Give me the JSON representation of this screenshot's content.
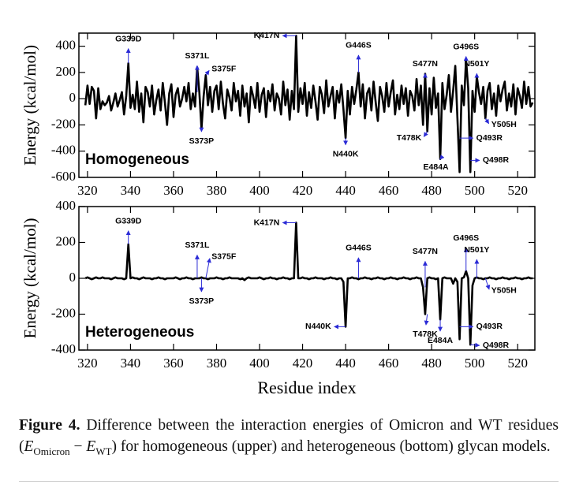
{
  "chart_data": [
    {
      "type": "line",
      "label": "Homogeneous",
      "ylabel": "Energy (kcal/mol)",
      "color": "#000000",
      "xlim": [
        316,
        528
      ],
      "ylim": [
        -600,
        500
      ],
      "xticks": [
        320,
        340,
        360,
        380,
        400,
        420,
        440,
        460,
        480,
        500,
        520
      ],
      "yticks": [
        -600,
        -400,
        -200,
        0,
        200,
        400
      ],
      "x": [
        319,
        320,
        321,
        322,
        323,
        324,
        325,
        326,
        327,
        328,
        329,
        330,
        331,
        332,
        333,
        334,
        335,
        336,
        337,
        338,
        339,
        340,
        341,
        342,
        343,
        344,
        345,
        346,
        347,
        348,
        349,
        350,
        351,
        352,
        353,
        354,
        355,
        356,
        357,
        358,
        359,
        360,
        361,
        362,
        363,
        364,
        365,
        366,
        367,
        368,
        369,
        370,
        371,
        372,
        373,
        374,
        375,
        376,
        377,
        378,
        379,
        380,
        381,
        382,
        383,
        384,
        385,
        386,
        387,
        388,
        389,
        390,
        391,
        392,
        393,
        394,
        395,
        396,
        397,
        398,
        399,
        400,
        401,
        402,
        403,
        404,
        405,
        406,
        407,
        408,
        409,
        410,
        411,
        412,
        413,
        414,
        415,
        416,
        417,
        418,
        419,
        420,
        421,
        422,
        423,
        424,
        425,
        426,
        427,
        428,
        429,
        430,
        431,
        432,
        433,
        434,
        435,
        436,
        437,
        438,
        439,
        440,
        441,
        442,
        443,
        444,
        445,
        446,
        447,
        448,
        449,
        450,
        451,
        452,
        453,
        454,
        455,
        456,
        457,
        458,
        459,
        460,
        461,
        462,
        463,
        464,
        465,
        466,
        467,
        468,
        469,
        470,
        471,
        472,
        473,
        474,
        475,
        476,
        477,
        478,
        479,
        480,
        481,
        482,
        483,
        484,
        485,
        486,
        487,
        488,
        489,
        490,
        491,
        492,
        493,
        494,
        495,
        496,
        497,
        498,
        499,
        500,
        501,
        502,
        503,
        504,
        505,
        506,
        507,
        508,
        509,
        510,
        511,
        512,
        513,
        514,
        515,
        516,
        517,
        518,
        519,
        520,
        521,
        522,
        523,
        524,
        525,
        526,
        527
      ],
      "values": [
        -50,
        100,
        -40,
        90,
        60,
        -150,
        80,
        -80,
        -20,
        -50,
        -30,
        20,
        -90,
        -30,
        40,
        -60,
        -10,
        50,
        -120,
        20,
        270,
        -70,
        30,
        -80,
        130,
        -100,
        40,
        -180,
        90,
        50,
        -60,
        100,
        -120,
        -10,
        70,
        -90,
        120,
        -30,
        -200,
        40,
        110,
        -140,
        30,
        80,
        -60,
        0,
        90,
        -20,
        120,
        -80,
        40,
        -60,
        240,
        50,
        -230,
        20,
        180,
        -50,
        90,
        -100,
        60,
        100,
        -80,
        130,
        -40,
        -150,
        70,
        10,
        -90,
        120,
        -20,
        60,
        -130,
        100,
        -60,
        40,
        -180,
        90,
        20,
        -70,
        120,
        -100,
        30,
        80,
        -140,
        60,
        -20,
        110,
        -90,
        40,
        0,
        -120,
        130,
        -50,
        70,
        -160,
        60,
        -80,
        480,
        -100,
        80,
        -40,
        120,
        -130,
        50,
        -70,
        100,
        -20,
        -160,
        90,
        30,
        -110,
        140,
        -60,
        20,
        90,
        -150,
        60,
        -30,
        110,
        -80,
        -300,
        60,
        -120,
        90,
        -40,
        70,
        200,
        -60,
        110,
        -150,
        40,
        80,
        -90,
        130,
        -30,
        -170,
        90,
        20,
        -100,
        120,
        -60,
        50,
        140,
        -120,
        30,
        -80,
        100,
        -40,
        80,
        -130,
        60,
        20,
        -90,
        150,
        -50,
        100,
        -200,
        190,
        -250,
        80,
        -120,
        160,
        -70,
        40,
        -460,
        120,
        -80,
        30,
        180,
        -100,
        60,
        250,
        -150,
        -560,
        100,
        -50,
        300,
        80,
        -560,
        60,
        -100,
        170,
        50,
        -40,
        90,
        -150,
        60,
        120,
        -80,
        40,
        -130,
        100,
        -20,
        70,
        130,
        -90,
        40,
        -60,
        110,
        -120,
        80,
        20,
        -70,
        130,
        -40,
        90,
        -60,
        -30
      ],
      "annotations": [
        {
          "text": "G339D",
          "x": 339,
          "y": 270,
          "tx": 339,
          "ty": 430,
          "ha": "center"
        },
        {
          "text": "S371L",
          "x": 371,
          "y": 50,
          "tx": 371,
          "ty": 300,
          "ha": "center"
        },
        {
          "text": "S375F",
          "x": 375,
          "y": 180,
          "tx": 377,
          "ty": 225,
          "ha": "left"
        },
        {
          "text": "S373P",
          "x": 373,
          "y": -230,
          "tx": 373,
          "ty": -300,
          "ha": "center"
        },
        {
          "text": "K417N",
          "x": 417,
          "y": 480,
          "tx": 410,
          "ty": 480,
          "ha": "right"
        },
        {
          "text": "N440K",
          "x": 440,
          "y": -300,
          "tx": 440,
          "ty": -400,
          "ha": "center"
        },
        {
          "text": "G446S",
          "x": 446,
          "y": 200,
          "tx": 446,
          "ty": 380,
          "ha": "center"
        },
        {
          "text": "S477N",
          "x": 477,
          "y": 190,
          "tx": 477,
          "ty": 240,
          "ha": "center"
        },
        {
          "text": "T478K",
          "x": 478,
          "y": -250,
          "tx": 476,
          "ty": -300,
          "ha": "right"
        },
        {
          "text": "E484A",
          "x": 484,
          "y": -460,
          "tx": 482,
          "ty": -500,
          "ha": "center"
        },
        {
          "text": "G496S",
          "x": 496,
          "y": 300,
          "tx": 496,
          "ty": 370,
          "ha": "center"
        },
        {
          "text": "N501Y",
          "x": 501,
          "y": 170,
          "tx": 501,
          "ty": 240,
          "ha": "center"
        },
        {
          "text": "Y505H",
          "x": 505,
          "y": -150,
          "tx": 507,
          "ty": -200,
          "ha": "left"
        },
        {
          "text": "Q493R",
          "x": 493,
          "y": -300,
          "tx": 500,
          "ty": -300,
          "ha": "left"
        },
        {
          "text": "Q498R",
          "x": 498,
          "y": -470,
          "tx": 503,
          "ty": -470,
          "ha": "left"
        }
      ]
    },
    {
      "type": "line",
      "label": "Heterogeneous",
      "ylabel": "Energy (kcal/mol)",
      "xlabel": "Residue index",
      "color": "#000000",
      "xlim": [
        316,
        528
      ],
      "ylim": [
        -400,
        400
      ],
      "xticks": [
        320,
        340,
        360,
        380,
        400,
        420,
        440,
        460,
        480,
        500,
        520
      ],
      "yticks": [
        -400,
        -200,
        0,
        200,
        400
      ],
      "x": [
        319,
        320,
        321,
        322,
        323,
        324,
        325,
        326,
        327,
        328,
        329,
        330,
        331,
        332,
        333,
        334,
        335,
        336,
        337,
        338,
        339,
        340,
        341,
        342,
        343,
        344,
        345,
        346,
        347,
        348,
        349,
        350,
        351,
        352,
        353,
        354,
        355,
        356,
        357,
        358,
        359,
        360,
        361,
        362,
        363,
        364,
        365,
        366,
        367,
        368,
        369,
        370,
        371,
        372,
        373,
        374,
        375,
        376,
        377,
        378,
        379,
        380,
        381,
        382,
        383,
        384,
        385,
        386,
        387,
        388,
        389,
        390,
        391,
        392,
        393,
        394,
        395,
        396,
        397,
        398,
        399,
        400,
        401,
        402,
        403,
        404,
        405,
        406,
        407,
        408,
        409,
        410,
        411,
        412,
        413,
        414,
        415,
        416,
        417,
        418,
        419,
        420,
        421,
        422,
        423,
        424,
        425,
        426,
        427,
        428,
        429,
        430,
        431,
        432,
        433,
        434,
        435,
        436,
        437,
        438,
        439,
        440,
        441,
        442,
        443,
        444,
        445,
        446,
        447,
        448,
        449,
        450,
        451,
        452,
        453,
        454,
        455,
        456,
        457,
        458,
        459,
        460,
        461,
        462,
        463,
        464,
        465,
        466,
        467,
        468,
        469,
        470,
        471,
        472,
        473,
        474,
        475,
        476,
        477,
        478,
        479,
        480,
        481,
        482,
        483,
        484,
        485,
        486,
        487,
        488,
        489,
        490,
        491,
        492,
        493,
        494,
        495,
        496,
        497,
        498,
        499,
        500,
        501,
        502,
        503,
        504,
        505,
        506,
        507,
        508,
        509,
        510,
        511,
        512,
        513,
        514,
        515,
        516,
        517,
        518,
        519,
        520,
        521,
        522,
        523,
        524,
        525,
        526,
        527
      ],
      "values": [
        0,
        5,
        0,
        -5,
        0,
        5,
        0,
        0,
        5,
        0,
        0,
        0,
        -5,
        0,
        5,
        0,
        0,
        0,
        -5,
        0,
        190,
        0,
        5,
        0,
        0,
        -5,
        0,
        5,
        0,
        0,
        0,
        -5,
        0,
        0,
        5,
        0,
        0,
        -5,
        0,
        0,
        0,
        0,
        5,
        0,
        -5,
        0,
        0,
        5,
        0,
        0,
        -5,
        0,
        0,
        0,
        5,
        0,
        0,
        -5,
        0,
        0,
        0,
        5,
        0,
        0,
        -5,
        0,
        0,
        5,
        0,
        0,
        0,
        0,
        -5,
        0,
        -10,
        0,
        5,
        0,
        0,
        0,
        0,
        5,
        0,
        -5,
        0,
        0,
        5,
        0,
        0,
        -5,
        0,
        0,
        5,
        0,
        0,
        -5,
        0,
        0,
        310,
        0,
        0,
        5,
        0,
        0,
        -5,
        0,
        0,
        5,
        0,
        0,
        0,
        -5,
        0,
        0,
        5,
        0,
        0,
        -5,
        0,
        0,
        -20,
        -270,
        0,
        0,
        5,
        0,
        0,
        -5,
        0,
        0,
        5,
        0,
        0,
        -5,
        0,
        0,
        5,
        0,
        0,
        -5,
        0,
        0,
        5,
        0,
        0,
        -5,
        0,
        0,
        5,
        0,
        0,
        -5,
        0,
        0,
        5,
        0,
        0,
        -50,
        -200,
        0,
        5,
        0,
        0,
        -5,
        0,
        -230,
        0,
        5,
        0,
        0,
        0,
        -30,
        0,
        -20,
        -340,
        0,
        5,
        40,
        0,
        -370,
        -40,
        0,
        5,
        0,
        0,
        -5,
        0,
        0,
        5,
        0,
        0,
        -5,
        0,
        0,
        5,
        0,
        0,
        -5,
        0,
        0,
        5,
        0,
        0,
        -5,
        0,
        0,
        5,
        0,
        0
      ],
      "annotations": [
        {
          "text": "G339D",
          "x": 339,
          "y": 190,
          "tx": 339,
          "ty": 300,
          "ha": "center"
        },
        {
          "text": "S371L",
          "x": 371,
          "y": 0,
          "tx": 371,
          "ty": 165,
          "ha": "center"
        },
        {
          "text": "S375F",
          "x": 375,
          "y": 0,
          "tx": 377,
          "ty": 120,
          "ha": "left"
        },
        {
          "text": "S373P",
          "x": 373,
          "y": 0,
          "tx": 373,
          "ty": -110,
          "ha": "center"
        },
        {
          "text": "K417N",
          "x": 417,
          "y": 310,
          "tx": 410,
          "ty": 310,
          "ha": "right"
        },
        {
          "text": "N440K",
          "x": 440,
          "y": -270,
          "tx": 434,
          "ty": -270,
          "ha": "right"
        },
        {
          "text": "G446S",
          "x": 446,
          "y": 0,
          "tx": 446,
          "ty": 150,
          "ha": "center"
        },
        {
          "text": "S477N",
          "x": 477,
          "y": -50,
          "tx": 477,
          "ty": 130,
          "ha": "center"
        },
        {
          "text": "T478K",
          "x": 478,
          "y": -200,
          "tx": 477,
          "ty": -295,
          "ha": "center"
        },
        {
          "text": "E484A",
          "x": 484,
          "y": -230,
          "tx": 484,
          "ty": -330,
          "ha": "center"
        },
        {
          "text": "G496S",
          "x": 496,
          "y": 40,
          "tx": 496,
          "ty": 205,
          "ha": "center"
        },
        {
          "text": "N501Y",
          "x": 501,
          "y": 0,
          "tx": 501,
          "ty": 140,
          "ha": "center"
        },
        {
          "text": "Y505H",
          "x": 505,
          "y": 0,
          "tx": 507,
          "ty": -70,
          "ha": "left"
        },
        {
          "text": "Q493R",
          "x": 493,
          "y": -270,
          "tx": 500,
          "ty": -270,
          "ha": "left"
        },
        {
          "text": "Q498R",
          "x": 498,
          "y": -370,
          "tx": 503,
          "ty": -375,
          "ha": "left"
        }
      ]
    }
  ],
  "caption": {
    "label": "Figure 4.",
    "text_1": "Difference between the interaction energies of Omicron and WT residues (",
    "e1": "E",
    "sub1": "Omicron",
    "minus": "−",
    "e2": "E",
    "sub2": "WT",
    "text_2": ") for homogeneous (upper) and heterogeneous (bottom) glycan models."
  }
}
